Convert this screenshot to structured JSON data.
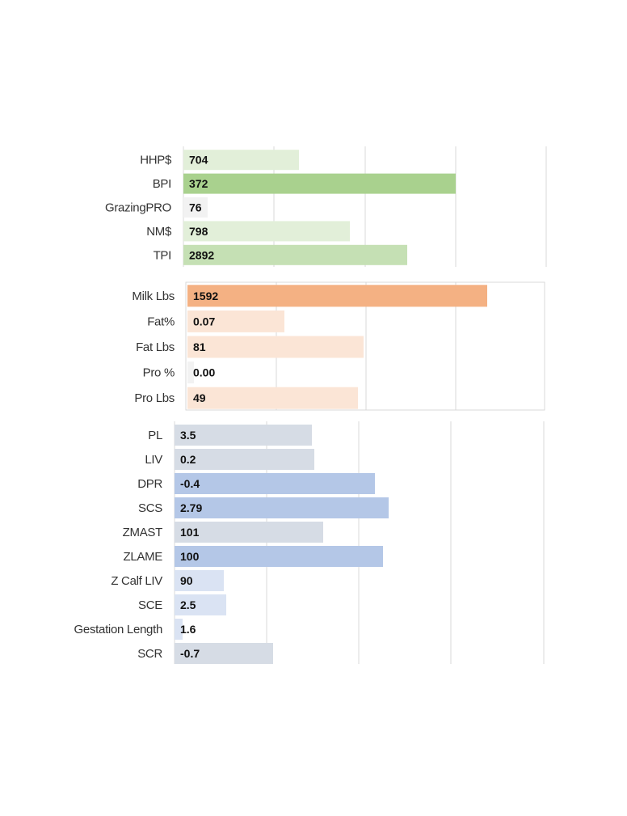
{
  "chart_data": [
    {
      "type": "bar",
      "orientation": "horizontal",
      "categories": [
        "HHP$",
        "BPI",
        "GrazingPRO",
        "NM$",
        "TPI"
      ],
      "values": [
        704,
        372,
        76,
        798,
        2892
      ],
      "value_labels": [
        "704",
        "372",
        "76",
        "798",
        "2892"
      ],
      "colors": [
        "#e2efd9",
        "#a9d18e",
        "#f2f2f2",
        "#e2efd9",
        "#c5e0b4"
      ],
      "grid": true,
      "legend": "none"
    },
    {
      "type": "bar",
      "orientation": "horizontal",
      "categories": [
        "Milk Lbs",
        "Fat%",
        "Fat Lbs",
        "Pro %",
        "Pro Lbs"
      ],
      "values": [
        1592,
        0.07,
        81,
        0.0,
        49
      ],
      "value_labels": [
        "1592",
        "0.07",
        "81",
        "0.00",
        "49"
      ],
      "colors": [
        "#f4b183",
        "#fbe5d6",
        "#fbe5d6",
        "#f2f2f2",
        "#fbe5d6"
      ],
      "grid": true,
      "legend": "none"
    },
    {
      "type": "bar",
      "orientation": "horizontal",
      "categories": [
        "PL",
        "LIV",
        "DPR",
        "SCS",
        "ZMAST",
        "ZLAME",
        "Z Calf LIV",
        "SCE",
        "Gestation Length",
        "SCR"
      ],
      "values": [
        3.5,
        0.2,
        -0.4,
        2.79,
        101,
        100,
        90,
        2.5,
        1.6,
        -0.7
      ],
      "value_labels": [
        "3.5",
        "0.2",
        "-0.4",
        "2.79",
        "101",
        "100",
        "90",
        "2.5",
        "1.6",
        "-0.7"
      ],
      "colors": [
        "#d6dce5",
        "#d6dce5",
        "#b4c7e7",
        "#b4c7e7",
        "#d6dce5",
        "#b4c7e7",
        "#dae3f3",
        "#dae3f3",
        "#dae3f3",
        "#d6dce5"
      ],
      "grid": true,
      "legend": "none"
    }
  ]
}
